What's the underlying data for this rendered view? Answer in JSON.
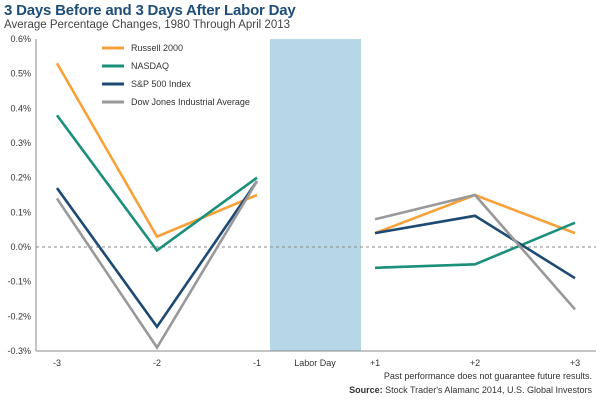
{
  "chart_data": {
    "type": "line",
    "title": "3 Days Before and 3 Days After Labor Day",
    "subtitle": "Average Percentage Changes, 1980 Through April 2013",
    "categories": [
      "-3",
      "-2",
      "-1",
      "Labor Day",
      "+1",
      "+2",
      "+3"
    ],
    "y_ticks": [
      "0.6%",
      "0.5%",
      "0.4%",
      "0.3%",
      "0.2%",
      "0.1%",
      "0.0%",
      "-0.1%",
      "-0.2%",
      "-0.3%"
    ],
    "ylim": [
      -0.3,
      0.6
    ],
    "highlight_category": "Labor Day",
    "zero_line": "dashed",
    "legend_position": "top-left",
    "series": [
      {
        "name": "Russell 2000",
        "color": "#f7a13a",
        "before": [
          0.53,
          0.03,
          0.15
        ],
        "after": [
          0.04,
          0.15,
          0.04
        ]
      },
      {
        "name": "NASDAQ",
        "color": "#1a8f7a",
        "before": [
          0.38,
          -0.01,
          0.2
        ],
        "after": [
          -0.06,
          -0.05,
          0.07
        ]
      },
      {
        "name": "S&P 500 Index",
        "color": "#1c4a74",
        "before": [
          0.17,
          -0.23,
          0.19
        ],
        "after": [
          0.04,
          0.09,
          -0.09
        ]
      },
      {
        "name": "Dow Jones Industrial Average",
        "color": "#999999",
        "before": [
          0.14,
          -0.29,
          0.19
        ],
        "after": [
          0.08,
          0.15,
          -0.18
        ]
      }
    ]
  },
  "footer": {
    "note": "Past performance does not guarantee future results.",
    "source_label": "Source:",
    "source_text": " Stock Trader's Alamanc 2014, U.S. Global Investors"
  },
  "colors": {
    "highlight": "#b7d7e6",
    "title": "#1f4e79"
  }
}
